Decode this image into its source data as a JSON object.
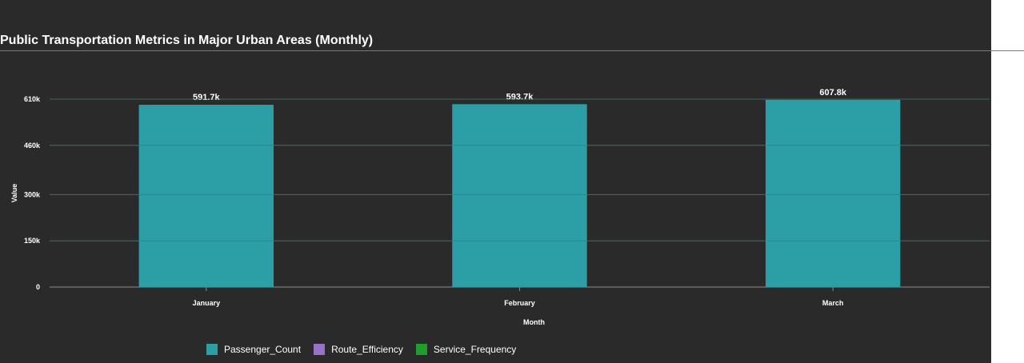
{
  "chart_data": {
    "type": "bar",
    "stacked": true,
    "title": "Public Transportation Metrics in Major Urban Areas (Monthly)",
    "xlabel": "Month",
    "ylabel": "Value",
    "categories": [
      "January",
      "February",
      "March"
    ],
    "yticks": [
      0,
      150000,
      300000,
      460000,
      610000
    ],
    "ytick_labels": [
      "0",
      "150k",
      "300k",
      "460k",
      "610k"
    ],
    "ylim": [
      0,
      610000
    ],
    "grid": true,
    "legend_position": "bottom",
    "series": [
      {
        "name": "Passenger_Count",
        "color": "#2b9fa5",
        "values": [
          591700,
          593700,
          607800
        ]
      },
      {
        "name": "Route_Efficiency",
        "color": "#9673c8",
        "values": [
          0,
          0,
          0
        ]
      },
      {
        "name": "Service_Frequency",
        "color": "#1e9f2a",
        "values": [
          0,
          0,
          0
        ]
      }
    ],
    "total_labels": [
      "591.7k",
      "593.7k",
      "607.8k"
    ]
  }
}
